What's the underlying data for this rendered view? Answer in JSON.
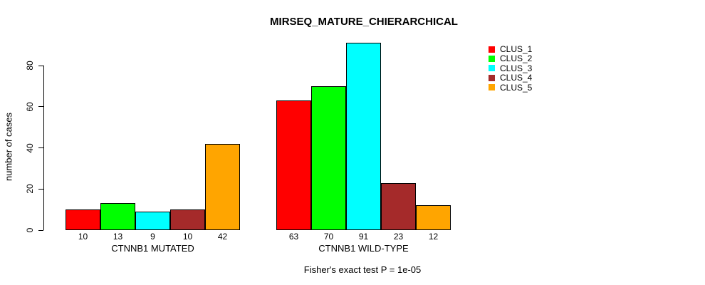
{
  "chart_data": {
    "type": "bar",
    "title": "MIRSEQ_MATURE_CHIERARCHICAL",
    "xlabel": "",
    "ylabel": "number of cases",
    "ylim": [
      0,
      80
    ],
    "yticks": [
      0,
      20,
      40,
      60,
      80
    ],
    "grid": false,
    "legend_position": "right",
    "series_names": [
      "CLUS_1",
      "CLUS_2",
      "CLUS_3",
      "CLUS_4",
      "CLUS_5"
    ],
    "series_colors": [
      "#FF0000",
      "#00FF00",
      "#00FFFF",
      "#A52A2A",
      "#FFA500"
    ],
    "groups": [
      {
        "label": "CTNNB1 MUTATED",
        "values": [
          10,
          13,
          9,
          10,
          42
        ]
      },
      {
        "label": "CTNNB1 WILD-TYPE",
        "values": [
          63,
          70,
          91,
          23,
          12
        ]
      }
    ],
    "annotation": "Fisher's exact test P = 1e-05"
  },
  "colors": {
    "background": "#ffffff",
    "axis": "#000000",
    "text": "#000000"
  }
}
